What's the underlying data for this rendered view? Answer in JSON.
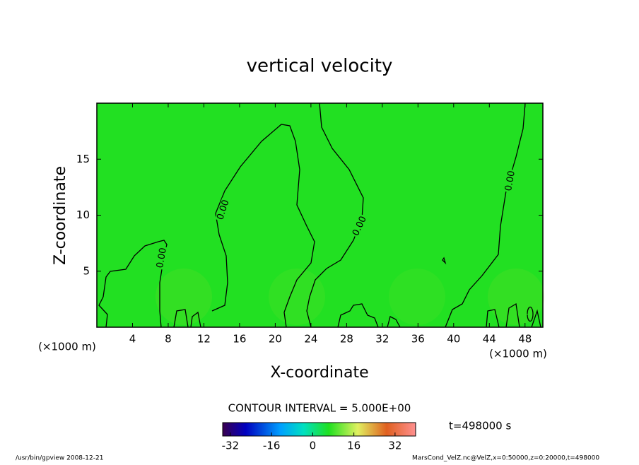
{
  "chart_data": {
    "type": "contour",
    "title": "vertical velocity",
    "x_label": "X-coordinate",
    "y_label": "Z-coordinate",
    "x_unit": "(×1000 m)",
    "xlim": [
      0,
      50
    ],
    "xticks": [
      4,
      8,
      12,
      16,
      20,
      24,
      28,
      32,
      36,
      40,
      44,
      48
    ],
    "ylim": [
      0,
      20
    ],
    "yticks": [
      5,
      10,
      15
    ],
    "field_color": "#22e022",
    "contour_color": "#000000",
    "contour_label": "0.00",
    "contour_level": 0,
    "contour_interval_text": "CONTOUR INTERVAL = 5.000E+00",
    "time_text": "t=498000 s",
    "clim": [
      -35,
      40
    ],
    "cticks": [
      -32,
      -16,
      0,
      16,
      32
    ],
    "footer_left": "/usr/bin/gpview   2008-12-21",
    "footer_right": "MarsCond_VelZ.nc@VelZ,x=0:50000,z=0:20000,t=498000"
  }
}
